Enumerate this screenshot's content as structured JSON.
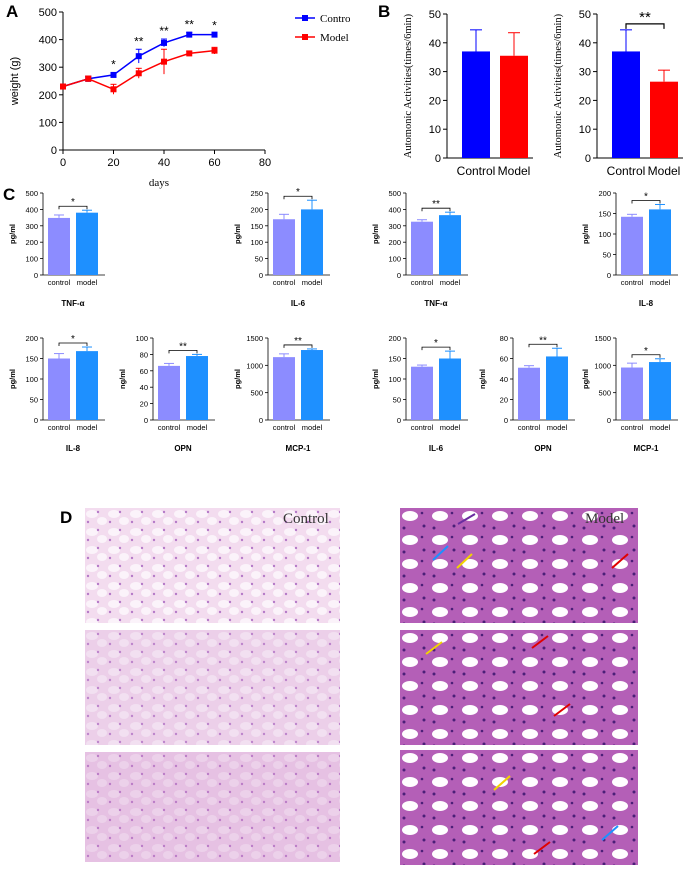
{
  "panel_letters": {
    "A": "A",
    "B": "B",
    "C": "C",
    "D": "D"
  },
  "colors": {
    "control": "#0000ff",
    "model": "#ff0000",
    "control_light": "#8c8cff",
    "model_blue": "#1e90ff",
    "stat_red": "#d40000"
  },
  "chart_data": [
    {
      "id": "A",
      "type": "line",
      "xlabel": "days",
      "ylabel": "weight (g)",
      "xlim": [
        0,
        80
      ],
      "ylim": [
        0,
        500
      ],
      "xticks": [
        0,
        20,
        40,
        60,
        80
      ],
      "yticks": [
        0,
        100,
        200,
        300,
        400,
        500
      ],
      "legend_placement": "top-right",
      "series": [
        {
          "name": "Control",
          "x": [
            0,
            10,
            20,
            30,
            40,
            50,
            60
          ],
          "y": [
            230,
            258,
            272,
            340,
            388,
            418,
            418
          ],
          "err": [
            6,
            10,
            8,
            25,
            14,
            8,
            5
          ]
        },
        {
          "name": "Model",
          "x": [
            0,
            10,
            20,
            30,
            40,
            50,
            60
          ],
          "y": [
            230,
            258,
            220,
            278,
            320,
            350,
            360
          ],
          "err": [
            6,
            10,
            18,
            18,
            45,
            8,
            12
          ]
        }
      ],
      "annotations": [
        {
          "x": 20,
          "text": "*"
        },
        {
          "x": 30,
          "text": "**"
        },
        {
          "x": 40,
          "text": "**"
        },
        {
          "x": 50,
          "text": "**"
        },
        {
          "x": 60,
          "text": "*"
        }
      ]
    },
    {
      "id": "B1",
      "type": "bar",
      "categories": [
        "Control",
        "Model"
      ],
      "values": [
        37,
        35.5
      ],
      "errors": [
        7.5,
        8
      ],
      "ylabel": "Automonic Activities(times/6min)",
      "ylim": [
        0,
        50
      ],
      "yticks": [
        0,
        10,
        20,
        30,
        40,
        50
      ]
    },
    {
      "id": "B2",
      "type": "bar",
      "categories": [
        "Control",
        "Model"
      ],
      "values": [
        37,
        26.5
      ],
      "errors": [
        7.5,
        4
      ],
      "ylabel": "Automonic Activities(times/6min)",
      "ylim": [
        0,
        50
      ],
      "yticks": [
        0,
        10,
        20,
        30,
        40,
        50
      ],
      "significance": "**"
    },
    {
      "id": "C1",
      "type": "bar",
      "categories": [
        "control",
        "model"
      ],
      "values": [
        348,
        380
      ],
      "errors": [
        18,
        15
      ],
      "ylabel": "pg/ml",
      "xlabel": "TNF-α",
      "ylim": [
        0,
        500
      ],
      "yticks": [
        0,
        100,
        200,
        300,
        400,
        500
      ],
      "significance": "*"
    },
    {
      "id": "C2",
      "type": "bar",
      "categories": [
        "control",
        "model"
      ],
      "values": [
        170,
        200
      ],
      "errors": [
        15,
        28
      ],
      "ylabel": "pg/ml",
      "xlabel": "IL-6",
      "ylim": [
        0,
        250
      ],
      "yticks": [
        0,
        50,
        100,
        150,
        200,
        250
      ],
      "significance": "*"
    },
    {
      "id": "C3",
      "type": "bar",
      "categories": [
        "control",
        "model"
      ],
      "values": [
        325,
        365
      ],
      "errors": [
        12,
        18
      ],
      "ylabel": "pg/ml",
      "xlabel": "TNF-α",
      "ylim": [
        0,
        500
      ],
      "yticks": [
        0,
        100,
        200,
        300,
        400,
        500
      ],
      "significance": "**"
    },
    {
      "id": "C4",
      "type": "bar",
      "categories": [
        "control",
        "model"
      ],
      "values": [
        142,
        160
      ],
      "errors": [
        6,
        12
      ],
      "ylabel": "pg/ml",
      "xlabel": "IL-8",
      "ylim": [
        0,
        200
      ],
      "yticks": [
        0,
        50,
        100,
        150,
        200
      ],
      "significance": "*"
    },
    {
      "id": "C5",
      "type": "bar",
      "categories": [
        "control",
        "model"
      ],
      "values": [
        150,
        168
      ],
      "errors": [
        12,
        10
      ],
      "ylabel": "pg/ml",
      "xlabel": "IL-8",
      "ylim": [
        0,
        200
      ],
      "yticks": [
        0,
        50,
        100,
        150,
        200
      ],
      "significance": "*"
    },
    {
      "id": "C6",
      "type": "bar",
      "categories": [
        "control",
        "model"
      ],
      "values": [
        66,
        78
      ],
      "errors": [
        3,
        2
      ],
      "ylabel": "ng/ml",
      "xlabel": "OPN",
      "ylim": [
        0,
        100
      ],
      "yticks": [
        0,
        20,
        40,
        60,
        80,
        100
      ],
      "significance": "**"
    },
    {
      "id": "C7",
      "type": "bar",
      "categories": [
        "control",
        "model"
      ],
      "values": [
        1150,
        1280
      ],
      "errors": [
        60,
        20
      ],
      "ylabel": "pg/ml",
      "xlabel": "MCP-1",
      "ylim": [
        0,
        1500
      ],
      "yticks": [
        0,
        500,
        1000,
        1500
      ],
      "significance": "**"
    },
    {
      "id": "C8",
      "type": "bar",
      "categories": [
        "control",
        "model"
      ],
      "values": [
        130,
        150
      ],
      "errors": [
        4,
        18
      ],
      "ylabel": "pg/ml",
      "xlabel": "IL-6",
      "ylim": [
        0,
        200
      ],
      "yticks": [
        0,
        50,
        100,
        150,
        200
      ],
      "significance": "*"
    },
    {
      "id": "C9",
      "type": "bar",
      "categories": [
        "control",
        "model"
      ],
      "values": [
        51,
        62
      ],
      "errors": [
        2,
        8
      ],
      "ylabel": "ng/ml",
      "xlabel": "OPN",
      "ylim": [
        0,
        80
      ],
      "yticks": [
        0,
        20,
        40,
        60,
        80
      ],
      "significance": "**"
    },
    {
      "id": "C10",
      "type": "bar",
      "categories": [
        "control",
        "model"
      ],
      "values": [
        960,
        1060
      ],
      "errors": [
        80,
        60
      ],
      "ylabel": "pg/ml",
      "xlabel": "MCP-1",
      "ylim": [
        0,
        1500
      ],
      "yticks": [
        0,
        500,
        1000,
        1500
      ],
      "significance": "*"
    }
  ],
  "histology": {
    "control_label": "Control",
    "model_label": "Model"
  }
}
